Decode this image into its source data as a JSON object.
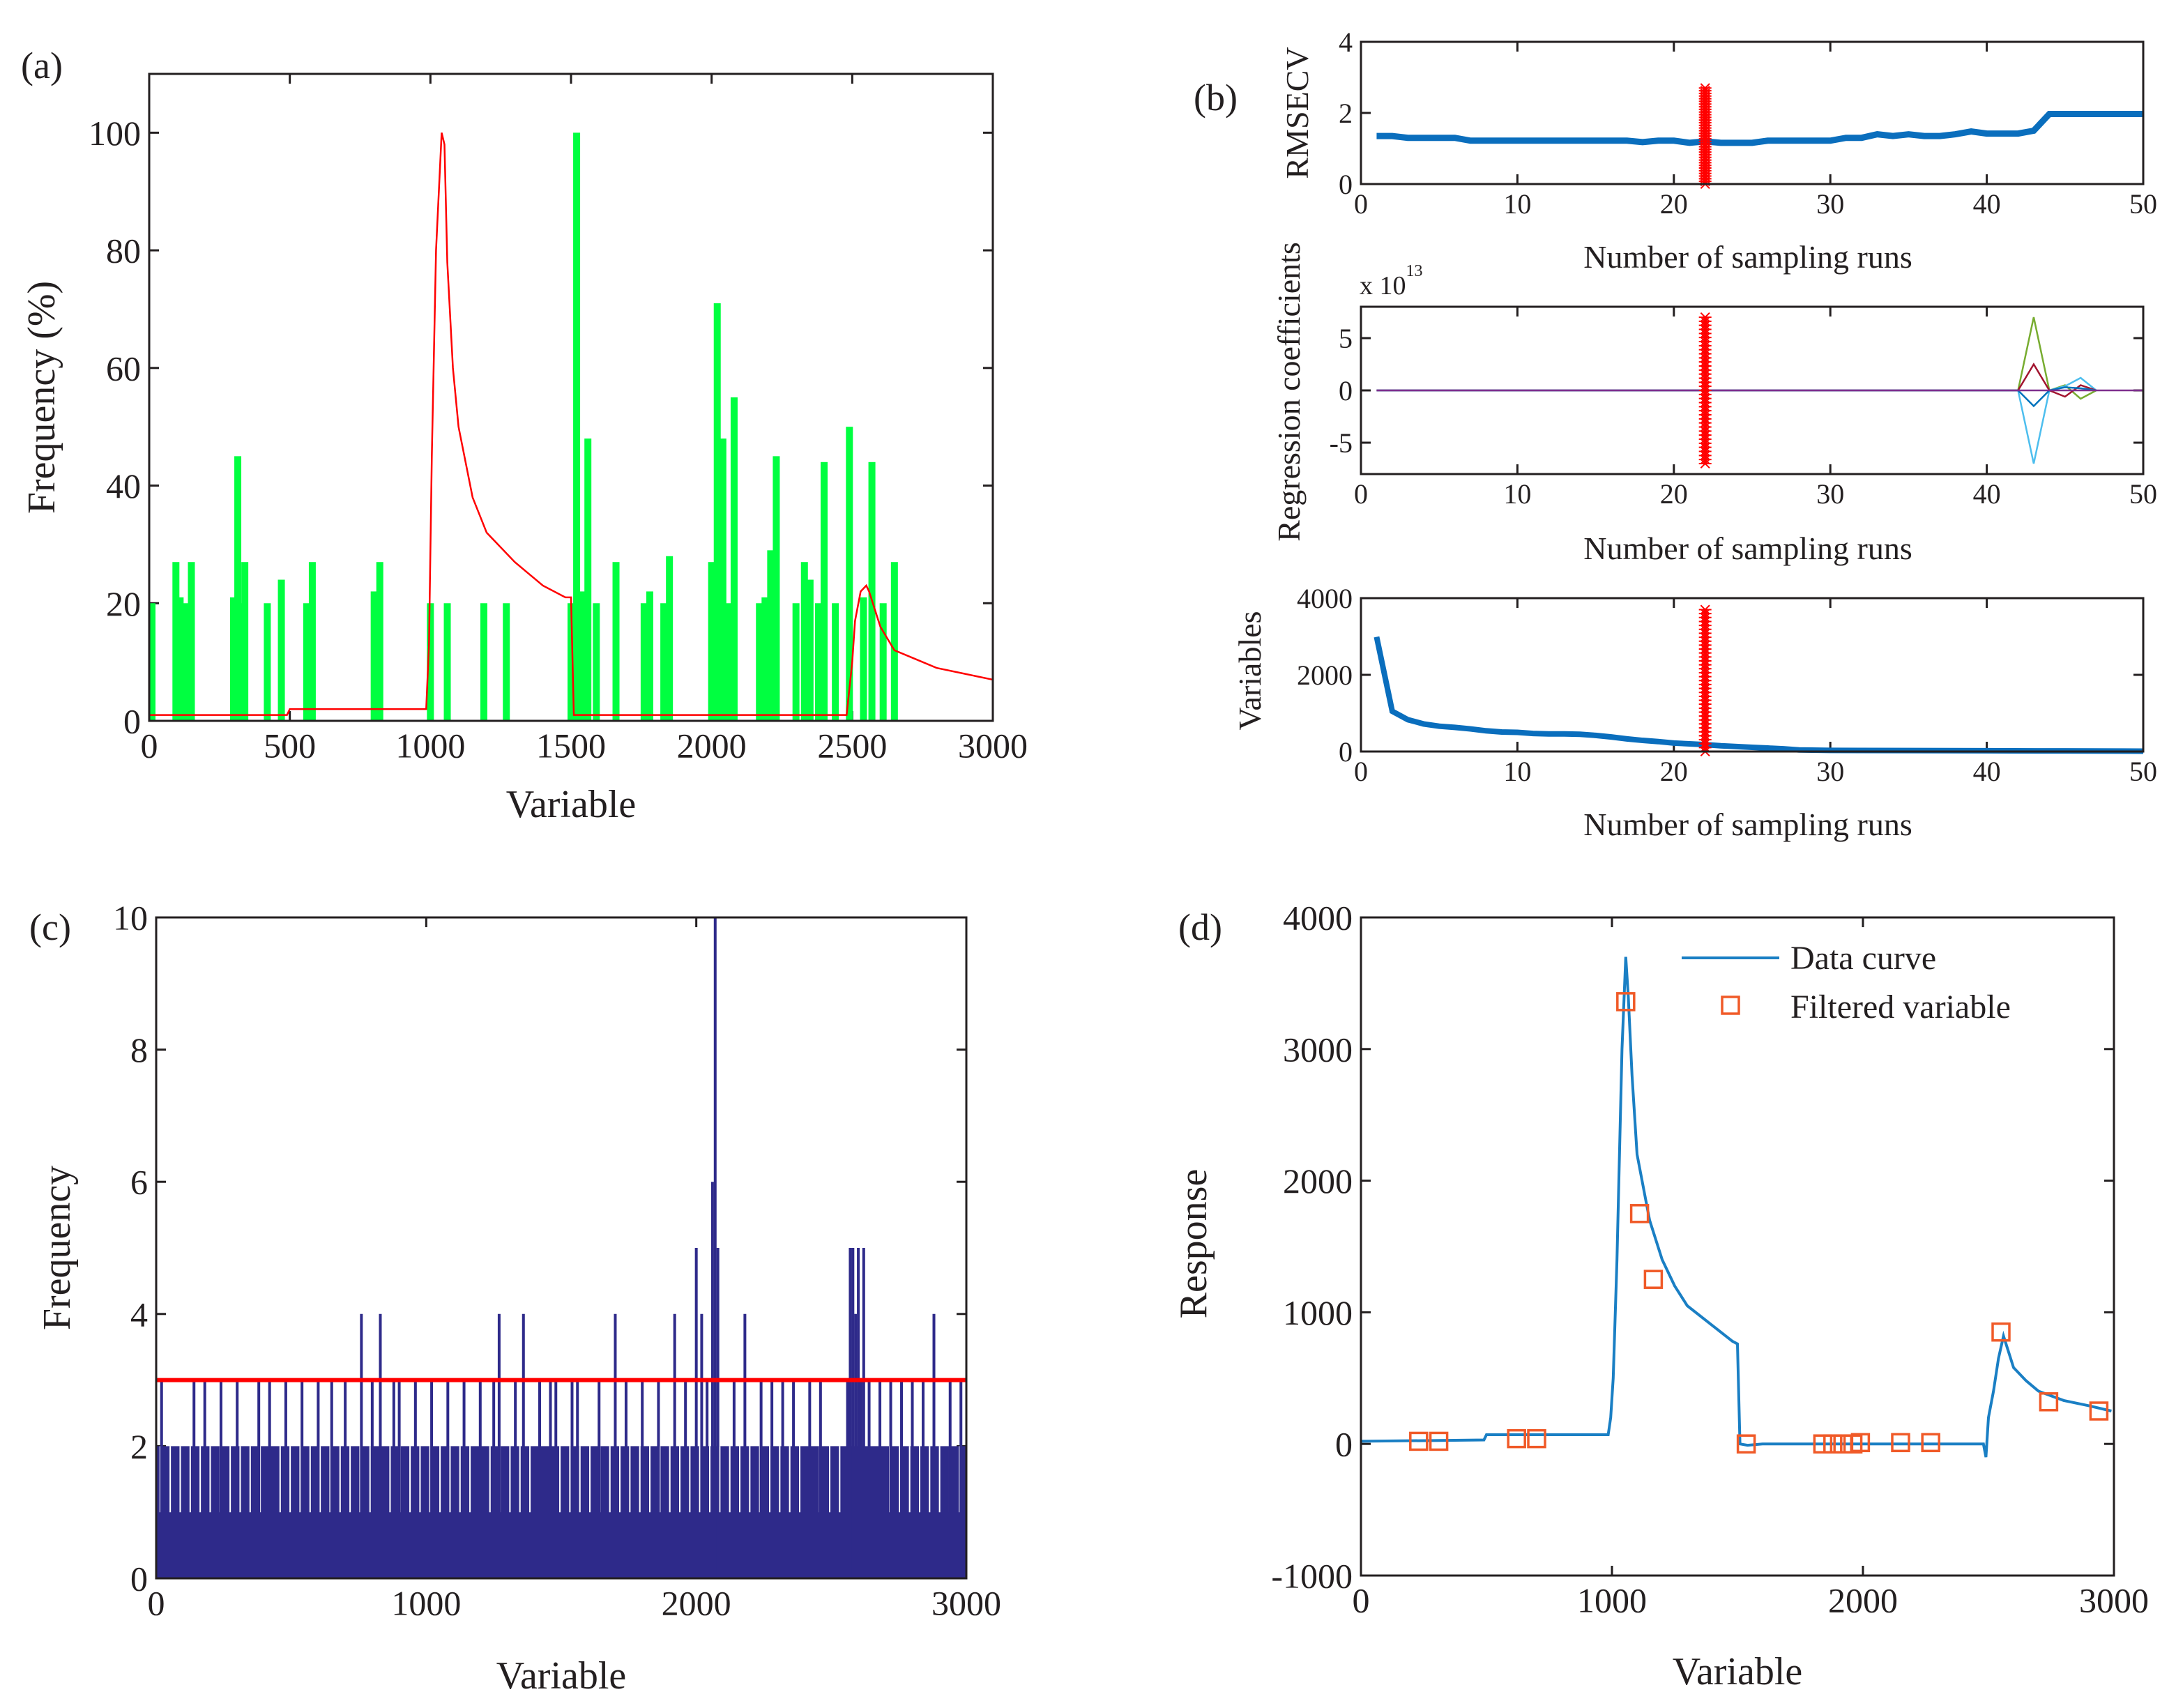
{
  "chart_data": [
    {
      "id": "a",
      "type": "bar",
      "panel_label": "(a)",
      "xlabel": "Variable",
      "ylabel": "Frequency (%)",
      "xlim": [
        0,
        3000
      ],
      "ylim": [
        0,
        110
      ],
      "xticks": [
        0,
        500,
        1000,
        1500,
        2000,
        2500,
        3000
      ],
      "yticks": [
        0,
        20,
        40,
        60,
        80,
        100
      ],
      "bar_color": "#00ff40",
      "curve_color": "#ff0000",
      "bars": {
        "x": [
          10,
          95,
          110,
          130,
          150,
          300,
          315,
          330,
          340,
          420,
          470,
          560,
          580,
          800,
          820,
          1000,
          1060,
          1190,
          1270,
          1500,
          1520,
          1540,
          1560,
          1590,
          1660,
          1760,
          1780,
          1830,
          1850,
          2000,
          2020,
          2040,
          2060,
          2080,
          2170,
          2190,
          2210,
          2230,
          2300,
          2330,
          2350,
          2380,
          2400,
          2440,
          2490,
          2540,
          2570,
          2610,
          2650
        ],
        "values": [
          20,
          27,
          21,
          20,
          27,
          21,
          45,
          20,
          27,
          20,
          24,
          20,
          27,
          22,
          27,
          20,
          20,
          20,
          20,
          20,
          100,
          22,
          48,
          20,
          27,
          20,
          22,
          20,
          28,
          27,
          71,
          48,
          20,
          55,
          20,
          21,
          29,
          45,
          20,
          27,
          24,
          20,
          44,
          20,
          50,
          21,
          44,
          20,
          27
        ]
      },
      "curve": {
        "x": [
          0,
          490,
          500,
          985,
          995,
          1005,
          1020,
          1040,
          1050,
          1060,
          1080,
          1100,
          1150,
          1200,
          1300,
          1400,
          1480,
          1500,
          1510,
          2480,
          2500,
          2510,
          2530,
          2550,
          2560,
          2600,
          2650,
          2700,
          2800,
          2900,
          3000
        ],
        "y": [
          1,
          1,
          2,
          2,
          13,
          45,
          80,
          100,
          98,
          78,
          60,
          50,
          38,
          32,
          27,
          23,
          21,
          21,
          1,
          1,
          10,
          17,
          22,
          23,
          22,
          16,
          12,
          11,
          9,
          8,
          7
        ]
      }
    },
    {
      "id": "b1",
      "type": "line",
      "panel_label": "(b)",
      "xlabel": "Number of sampling runs",
      "ylabel": "RMSECV",
      "xlim": [
        0,
        50
      ],
      "ylim": [
        0,
        4
      ],
      "xticks": [
        0,
        10,
        20,
        30,
        40,
        50
      ],
      "yticks": [
        0,
        2,
        4
      ],
      "line_color": "#0a6ebd",
      "marker_color": "#ff0000",
      "marker_x": 22,
      "marker_range": [
        0,
        2.7
      ],
      "series": [
        {
          "x": [
            1,
            2,
            3,
            4,
            5,
            6,
            7,
            8,
            9,
            10,
            11,
            12,
            13,
            14,
            15,
            16,
            17,
            18,
            19,
            20,
            21,
            22,
            23,
            24,
            25,
            26,
            27,
            28,
            29,
            30,
            31,
            32,
            33,
            34,
            35,
            36,
            37,
            38,
            39,
            40,
            41,
            42,
            43,
            44,
            45,
            46,
            47,
            48,
            49,
            50
          ],
          "y": [
            1.35,
            1.35,
            1.3,
            1.3,
            1.3,
            1.3,
            1.22,
            1.22,
            1.22,
            1.22,
            1.22,
            1.22,
            1.22,
            1.22,
            1.22,
            1.22,
            1.22,
            1.18,
            1.22,
            1.22,
            1.16,
            1.2,
            1.16,
            1.16,
            1.16,
            1.22,
            1.22,
            1.22,
            1.22,
            1.22,
            1.3,
            1.3,
            1.4,
            1.35,
            1.4,
            1.35,
            1.35,
            1.4,
            1.48,
            1.42,
            1.42,
            1.42,
            1.5,
            1.97,
            1.97,
            1.97,
            1.97,
            1.97,
            1.97,
            1.97
          ]
        }
      ]
    },
    {
      "id": "b2",
      "type": "line",
      "xlabel": "Number of sampling runs",
      "ylabel": "Regression coefficients",
      "exponent_label": "x 10",
      "exponent_power": "13",
      "xlim": [
        0,
        50
      ],
      "ylim": [
        -8,
        8
      ],
      "xticks": [
        0,
        10,
        20,
        30,
        40,
        50
      ],
      "yticks": [
        -5,
        0,
        5
      ],
      "marker_color": "#ff0000",
      "marker_x": 22,
      "marker_range": [
        -7,
        7
      ],
      "series": [
        {
          "color": "#77ac30",
          "x": [
            1,
            42,
            43,
            44,
            45,
            46,
            47
          ],
          "y": [
            0,
            0,
            7,
            0,
            0.5,
            -0.8,
            0
          ]
        },
        {
          "color": "#4dbeee",
          "x": [
            1,
            42,
            43,
            44,
            45,
            46,
            47
          ],
          "y": [
            0,
            0,
            -7,
            0,
            0.4,
            1.2,
            0
          ]
        },
        {
          "color": "#a2142f",
          "x": [
            1,
            42,
            43,
            44,
            45,
            46,
            47
          ],
          "y": [
            0,
            0,
            2.5,
            0,
            -0.6,
            0.5,
            0
          ]
        },
        {
          "color": "#0072bd",
          "x": [
            1,
            42,
            43,
            44,
            45,
            46,
            47
          ],
          "y": [
            0,
            0,
            -1.5,
            0,
            0.3,
            0.2,
            0
          ]
        },
        {
          "color": "#7e2f8e",
          "x": [
            1,
            50
          ],
          "y": [
            0,
            0
          ]
        }
      ]
    },
    {
      "id": "b3",
      "type": "line",
      "xlabel": "Number of sampling runs",
      "ylabel": "Variables",
      "xlim": [
        0,
        50
      ],
      "ylim": [
        0,
        4000
      ],
      "xticks": [
        0,
        10,
        20,
        30,
        40,
        50
      ],
      "yticks": [
        0,
        2000,
        4000
      ],
      "line_color": "#0a6ebd",
      "marker_color": "#ff0000",
      "marker_x": 22,
      "marker_range": [
        0,
        3700
      ],
      "series": [
        {
          "x": [
            1,
            2,
            3,
            4,
            5,
            6,
            7,
            8,
            9,
            10,
            11,
            12,
            13,
            14,
            15,
            16,
            17,
            18,
            19,
            20,
            21,
            22,
            23,
            24,
            25,
            26,
            27,
            28,
            30,
            35,
            40,
            45,
            50
          ],
          "y": [
            2990,
            1050,
            830,
            720,
            660,
            630,
            590,
            540,
            510,
            500,
            470,
            460,
            460,
            450,
            420,
            380,
            330,
            290,
            260,
            220,
            200,
            180,
            150,
            130,
            110,
            90,
            70,
            40,
            30,
            25,
            20,
            15,
            10
          ]
        }
      ]
    },
    {
      "id": "c",
      "type": "bar",
      "panel_label": "(c)",
      "xlabel": "Variable",
      "ylabel": "Frequency",
      "xlim": [
        0,
        3000
      ],
      "ylim": [
        0,
        10
      ],
      "xticks": [
        0,
        1000,
        2000,
        3000
      ],
      "yticks": [
        0,
        2,
        4,
        6,
        8,
        10
      ],
      "bar_color": "#2e2a8a",
      "threshold": 3,
      "threshold_color": "#ff0000",
      "spikes": {
        "x": [
          20,
          140,
          180,
          240,
          300,
          380,
          420,
          480,
          540,
          600,
          650,
          700,
          760,
          800,
          830,
          880,
          900,
          960,
          1020,
          1080,
          1140,
          1200,
          1250,
          1270,
          1330,
          1360,
          1420,
          1460,
          1480,
          1540,
          1560,
          1640,
          1700,
          1740,
          1800,
          1860,
          1920,
          1960,
          2000,
          2020,
          2040,
          2060,
          2070,
          2080,
          2140,
          2180,
          2240,
          2280,
          2320,
          2360,
          2420,
          2460,
          2560,
          2570,
          2580,
          2590,
          2600,
          2610,
          2620,
          2640,
          2680,
          2720,
          2760,
          2800,
          2840,
          2880,
          2940,
          2980
        ],
        "values": [
          3,
          3,
          3,
          3,
          3,
          3,
          3,
          3,
          3,
          3,
          3,
          3,
          4,
          3,
          4,
          3,
          3,
          3,
          3,
          3,
          3,
          3,
          3,
          4,
          3,
          4,
          3,
          3,
          3,
          3,
          3,
          3,
          4,
          3,
          3,
          3,
          4,
          3,
          5,
          4,
          3,
          6,
          10,
          5,
          3,
          4,
          3,
          3,
          3,
          3,
          3,
          3,
          3,
          5,
          5,
          4,
          5,
          3,
          5,
          3,
          3,
          3,
          3,
          3,
          3,
          4,
          3,
          3
        ]
      }
    },
    {
      "id": "d",
      "type": "line",
      "panel_label": "(d)",
      "xlabel": "Variable",
      "ylabel": "Response",
      "xlim": [
        0,
        3000
      ],
      "ylim": [
        -1000,
        4000
      ],
      "xticks": [
        0,
        1000,
        2000,
        3000
      ],
      "yticks": [
        -1000,
        0,
        1000,
        2000,
        3000,
        4000
      ],
      "legend_position": "top-right",
      "series": [
        {
          "name": "Data curve",
          "color": "#1a7fc4",
          "x": [
            0,
            490,
            500,
            985,
            995,
            1005,
            1020,
            1040,
            1055,
            1065,
            1080,
            1100,
            1150,
            1200,
            1250,
            1300,
            1400,
            1480,
            1500,
            1510,
            1540,
            1600,
            2000,
            2480,
            2490,
            2500,
            2520,
            2540,
            2560,
            2580,
            2600,
            2650,
            2700,
            2800,
            2900,
            2990
          ],
          "y": [
            20,
            30,
            70,
            70,
            200,
            500,
            1400,
            3000,
            3700,
            3400,
            2800,
            2200,
            1700,
            1400,
            1200,
            1050,
            900,
            780,
            760,
            0,
            -10,
            0,
            0,
            0,
            -100,
            200,
            400,
            650,
            820,
            700,
            580,
            480,
            400,
            330,
            290,
            250
          ]
        },
        {
          "name": "Filtered variable",
          "color": "#f05a28",
          "marker": "square",
          "x": [
            230,
            310,
            620,
            700,
            1055,
            1110,
            1165,
            1535,
            1840,
            1880,
            1920,
            1960,
            1990,
            2150,
            2270,
            2550,
            2740,
            2940
          ],
          "y": [
            20,
            20,
            40,
            40,
            3360,
            1750,
            1250,
            0,
            0,
            0,
            0,
            0,
            10,
            10,
            10,
            850,
            320,
            250
          ]
        }
      ]
    }
  ]
}
